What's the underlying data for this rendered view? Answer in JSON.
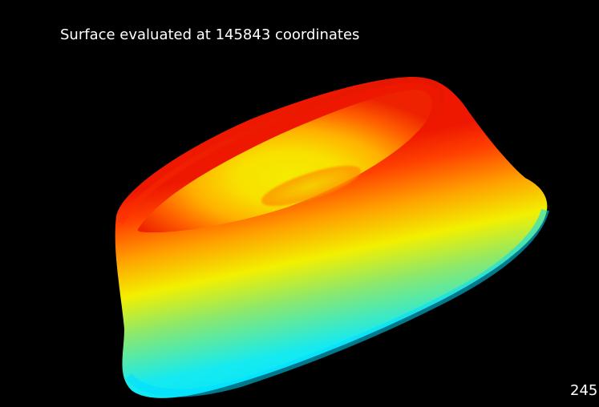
{
  "viewer": {
    "caption": "Surface evaluated at 145843 coordinates",
    "frame_counter": "245",
    "background_color": "#000000",
    "text_color": "#ffffff"
  },
  "surface": {
    "shape": "truncated-cone-ring",
    "colormap": "jet",
    "colormap_stops": [
      "#00e5ff",
      "#7ee879",
      "#f0f000",
      "#ff9000",
      "#ff2a00"
    ]
  }
}
